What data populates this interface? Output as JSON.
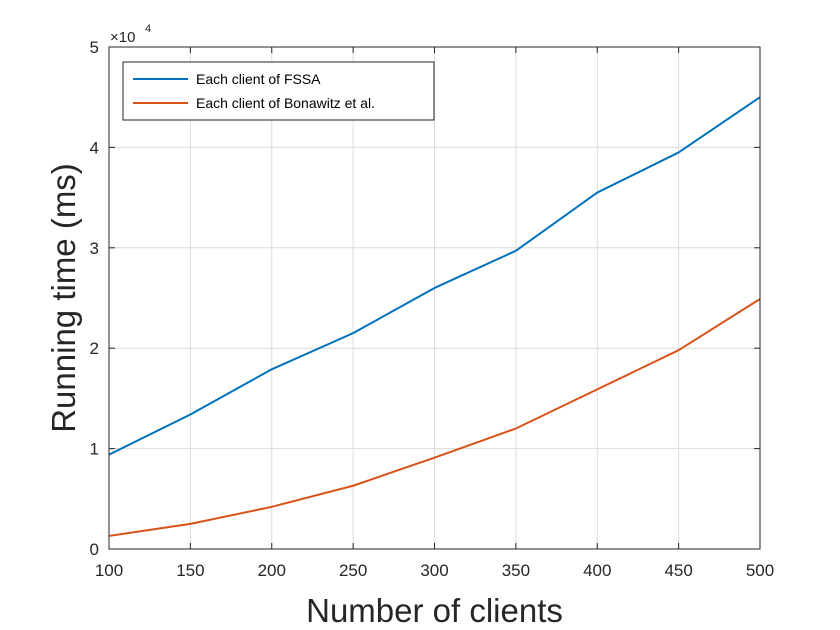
{
  "chart_data": {
    "type": "line",
    "title": "",
    "xlabel": "Number of clients",
    "ylabel": "Running time (ms)",
    "x": [
      100,
      150,
      200,
      250,
      300,
      350,
      400,
      450,
      500
    ],
    "xlim": [
      100,
      500
    ],
    "ylim": [
      0,
      5
    ],
    "y_multiplier_label": {
      "base": "×10",
      "exponent": "4"
    },
    "x_ticks": [
      "100",
      "150",
      "200",
      "250",
      "300",
      "350",
      "400",
      "450",
      "500"
    ],
    "y_ticks": [
      "0",
      "1",
      "2",
      "3",
      "4",
      "5"
    ],
    "grid": true,
    "legend_position": "top-left",
    "series": [
      {
        "name": "Each client of FSSA",
        "color": "#0072BD",
        "values": [
          0.94,
          1.34,
          1.79,
          2.15,
          2.6,
          2.97,
          3.55,
          3.95,
          4.5
        ]
      },
      {
        "name": "Each client of Bonawitz et al.",
        "color": "#D95319",
        "values": [
          0.13,
          0.25,
          0.42,
          0.63,
          0.91,
          1.2,
          1.59,
          1.98,
          2.49
        ]
      }
    ]
  }
}
